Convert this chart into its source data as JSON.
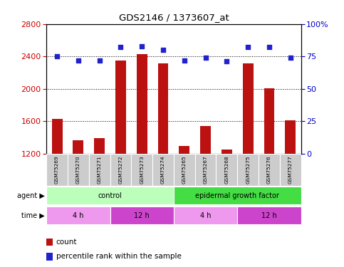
{
  "title": "GDS2146 / 1373607_at",
  "samples": [
    "GSM75269",
    "GSM75270",
    "GSM75271",
    "GSM75272",
    "GSM75273",
    "GSM75274",
    "GSM75265",
    "GSM75267",
    "GSM75268",
    "GSM75275",
    "GSM75276",
    "GSM75277"
  ],
  "counts": [
    1630,
    1360,
    1390,
    2350,
    2430,
    2310,
    1290,
    1540,
    1250,
    2310,
    2010,
    1610
  ],
  "percentiles": [
    75,
    72,
    72,
    82,
    83,
    80,
    72,
    74,
    71,
    82,
    82,
    74
  ],
  "ylim_left": [
    1200,
    2800
  ],
  "ylim_right": [
    0,
    100
  ],
  "yticks_left": [
    1200,
    1600,
    2000,
    2400,
    2800
  ],
  "yticks_right": [
    0,
    25,
    50,
    75,
    100
  ],
  "bar_color": "#bb1111",
  "dot_color": "#2222cc",
  "agent_groups": [
    {
      "label": "control",
      "start": 0,
      "end": 6,
      "color": "#bbffbb"
    },
    {
      "label": "epidermal growth factor",
      "start": 6,
      "end": 12,
      "color": "#44dd44"
    }
  ],
  "time_groups": [
    {
      "label": "4 h",
      "start": 0,
      "end": 3,
      "color": "#ee99ee"
    },
    {
      "label": "12 h",
      "start": 3,
      "end": 6,
      "color": "#cc44cc"
    },
    {
      "label": "4 h",
      "start": 6,
      "end": 9,
      "color": "#ee99ee"
    },
    {
      "label": "12 h",
      "start": 9,
      "end": 12,
      "color": "#cc44cc"
    }
  ],
  "legend_count_color": "#bb1111",
  "legend_percentile_color": "#2222cc",
  "bar_baseline": 1200,
  "ytick_left_color": "#cc0000",
  "ytick_right_color": "#0000cc"
}
